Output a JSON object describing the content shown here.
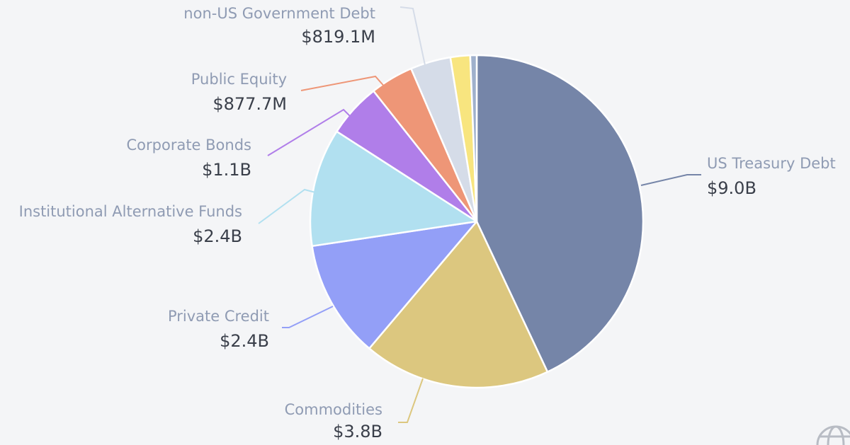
{
  "chart_data": {
    "type": "pie",
    "title": "",
    "start": "top",
    "direction": "clockwise",
    "slices": [
      {
        "name": "US Treasury Debt",
        "label": "$9.0B",
        "value": 9.0,
        "color": "#7585a8"
      },
      {
        "name": "Commodities",
        "label": "$3.8B",
        "value": 3.8,
        "color": "#dcc77f"
      },
      {
        "name": "Private Credit",
        "label": "$2.4B",
        "value": 2.4,
        "color": "#939ff7"
      },
      {
        "name": "Institutional Alternative Funds",
        "label": "$2.4B",
        "value": 2.4,
        "color": "#b1e0f0"
      },
      {
        "name": "Corporate Bonds",
        "label": "$1.1B",
        "value": 1.1,
        "color": "#b07ee9"
      },
      {
        "name": "Public Equity",
        "label": "$877.7M",
        "value": 0.8777,
        "color": "#ee9677"
      },
      {
        "name": "non-US Government Debt",
        "label": "$819.1M",
        "value": 0.8191,
        "color": "#d5dce8"
      },
      {
        "name": "",
        "label": "",
        "value": 0.4,
        "color": "#f8e57f"
      },
      {
        "name": "",
        "label": "",
        "value": 0.13,
        "color": "#9fb0cc"
      }
    ]
  },
  "icons": {
    "corner": "globe-icon"
  }
}
